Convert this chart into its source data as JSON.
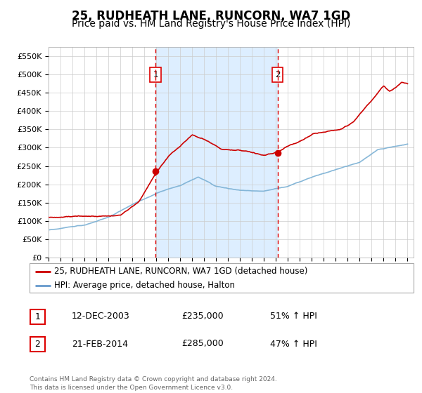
{
  "title": "25, RUDHEATH LANE, RUNCORN, WA7 1GD",
  "subtitle": "Price paid vs. HM Land Registry's House Price Index (HPI)",
  "title_fontsize": 12,
  "subtitle_fontsize": 10,
  "background_color": "#ffffff",
  "plot_bg_color": "#ffffff",
  "grid_color": "#cccccc",
  "ylim": [
    0,
    575000
  ],
  "yticks": [
    0,
    50000,
    100000,
    150000,
    200000,
    250000,
    300000,
    350000,
    400000,
    450000,
    500000,
    550000
  ],
  "ytick_labels": [
    "£0",
    "£50K",
    "£100K",
    "£150K",
    "£200K",
    "£250K",
    "£300K",
    "£350K",
    "£400K",
    "£450K",
    "£500K",
    "£550K"
  ],
  "sale1_date_num": 2003.95,
  "sale1_price": 235000,
  "sale1_label": "1",
  "sale2_date_num": 2014.13,
  "sale2_price": 285000,
  "sale2_label": "2",
  "legend_entries": [
    "25, RUDHEATH LANE, RUNCORN, WA7 1GD (detached house)",
    "HPI: Average price, detached house, Halton"
  ],
  "legend_colors": [
    "#cc0000",
    "#6699cc"
  ],
  "annotation_rows": [
    {
      "label": "1",
      "date": "12-DEC-2003",
      "price": "£235,000",
      "pct": "51% ↑ HPI"
    },
    {
      "label": "2",
      "date": "21-FEB-2014",
      "price": "£285,000",
      "pct": "47% ↑ HPI"
    }
  ],
  "footer": "Contains HM Land Registry data © Crown copyright and database right 2024.\nThis data is licensed under the Open Government Licence v3.0.",
  "shaded_region_color": "#ddeeff",
  "vline_color": "#dd0000",
  "marker_color": "#cc0000",
  "hpi_line_color": "#7ab0d4",
  "price_line_color": "#cc0000"
}
